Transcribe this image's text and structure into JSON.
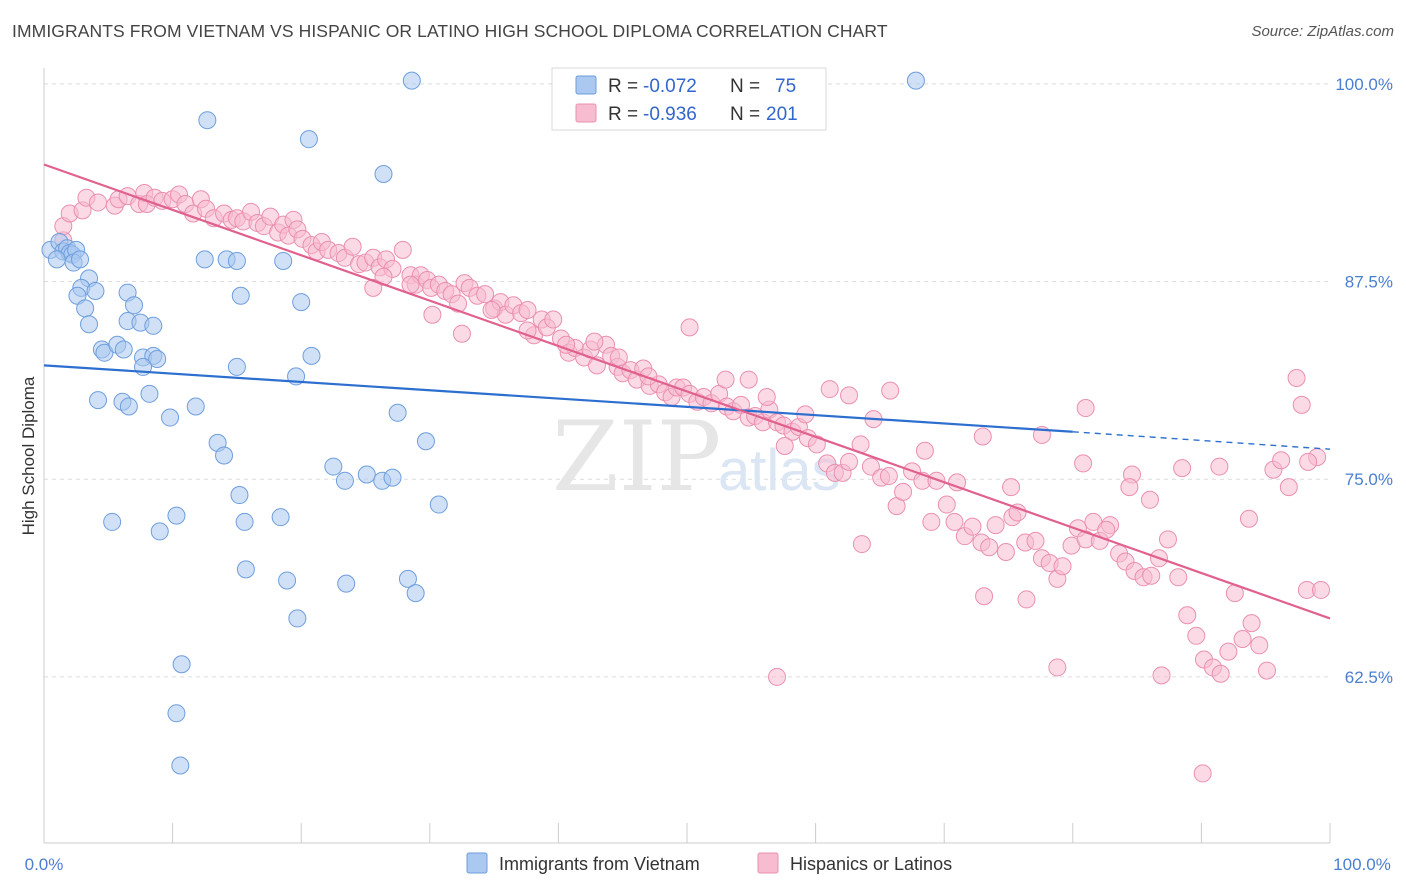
{
  "title": "IMMIGRANTS FROM VIETNAM VS HISPANIC OR LATINO HIGH SCHOOL DIPLOMA CORRELATION CHART",
  "source": "Source: ZipAtlas.com",
  "watermark": {
    "zip": "ZIP",
    "atlas": "atlas"
  },
  "legend": {
    "rows": [
      {
        "r_label": "R = ",
        "r_value": "-0.072",
        "n_label": "N = ",
        "n_value": "75",
        "color": "#8fb8ea"
      },
      {
        "r_label": "R = ",
        "r_value": "-0.936",
        "n_label": "N = ",
        "n_value": "201",
        "color": "#f2a6c0"
      }
    ]
  },
  "colors": {
    "blue_fill": "#aac8f0",
    "blue_stroke": "#6e9edd",
    "blue_line": "#2c6fcf",
    "pink_fill": "#f7bcd0",
    "pink_stroke": "#eb8fb0",
    "pink_line": "#e0608e",
    "grid": "#dcdcdc",
    "tick_text": "#4a7fd0"
  },
  "chart_data": {
    "type": "scatter",
    "title": "IMMIGRANTS FROM VIETNAM VS HISPANIC OR LATINO HIGH SCHOOL DIPLOMA CORRELATION CHART",
    "xlabel": "",
    "ylabel": "High School Diploma",
    "xlim": [
      0,
      100
    ],
    "ylim": [
      52,
      101
    ],
    "x_ticks": [
      "0.0%",
      "100.0%"
    ],
    "y_ticks": [
      {
        "value": 100,
        "label": "100.0%"
      },
      {
        "value": 87.5,
        "label": "87.5%"
      },
      {
        "value": 75,
        "label": "75.0%"
      },
      {
        "value": 62.5,
        "label": "62.5%"
      }
    ],
    "grid": true,
    "legend_position": "top-center",
    "series": [
      {
        "name": "Immigrants from Vietnam",
        "r": -0.072,
        "n": 75,
        "trend": {
          "x0": 0,
          "y0": 82.2,
          "x1": 80,
          "y1": 78.0,
          "dashed_to_x": 100,
          "dashed_to_y": 76.9
        },
        "points": [
          [
            0.5,
            89.5
          ],
          [
            1.2,
            90.0
          ],
          [
            1.5,
            89.4
          ],
          [
            1.8,
            89.6
          ],
          [
            2.0,
            89.3
          ],
          [
            2.2,
            89.2
          ],
          [
            2.5,
            89.5
          ],
          [
            2.3,
            88.7
          ],
          [
            1.0,
            88.9
          ],
          [
            2.8,
            88.9
          ],
          [
            3.5,
            87.7
          ],
          [
            2.9,
            87.1
          ],
          [
            4.0,
            86.9
          ],
          [
            2.6,
            86.6
          ],
          [
            3.2,
            85.8
          ],
          [
            6.5,
            86.8
          ],
          [
            7.0,
            86.0
          ],
          [
            3.5,
            84.8
          ],
          [
            6.5,
            85.0
          ],
          [
            7.5,
            84.9
          ],
          [
            8.5,
            84.7
          ],
          [
            4.5,
            83.2
          ],
          [
            4.7,
            83.0
          ],
          [
            5.7,
            83.5
          ],
          [
            6.2,
            83.2
          ],
          [
            7.7,
            82.7
          ],
          [
            8.5,
            82.8
          ],
          [
            8.8,
            82.6
          ],
          [
            7.7,
            82.1
          ],
          [
            12.5,
            88.9
          ],
          [
            14.2,
            88.9
          ],
          [
            15.0,
            88.8
          ],
          [
            15.3,
            86.6
          ],
          [
            18.6,
            88.8
          ],
          [
            19.6,
            81.5
          ],
          [
            20.0,
            86.2
          ],
          [
            20.8,
            82.8
          ],
          [
            15.0,
            82.1
          ],
          [
            4.2,
            80.0
          ],
          [
            6.1,
            79.9
          ],
          [
            6.6,
            79.6
          ],
          [
            8.2,
            80.4
          ],
          [
            11.8,
            79.6
          ],
          [
            9.8,
            78.9
          ],
          [
            13.5,
            77.3
          ],
          [
            14.0,
            76.5
          ],
          [
            22.5,
            75.8
          ],
          [
            23.4,
            74.9
          ],
          [
            25.1,
            75.3
          ],
          [
            26.3,
            74.9
          ],
          [
            27.1,
            75.1
          ],
          [
            29.7,
            77.4
          ],
          [
            15.2,
            74.0
          ],
          [
            10.3,
            72.7
          ],
          [
            15.6,
            72.3
          ],
          [
            18.4,
            72.6
          ],
          [
            9.0,
            71.7
          ],
          [
            5.3,
            72.3
          ],
          [
            15.7,
            69.3
          ],
          [
            18.9,
            68.6
          ],
          [
            23.5,
            68.4
          ],
          [
            28.3,
            68.7
          ],
          [
            28.9,
            67.8
          ],
          [
            19.7,
            66.2
          ],
          [
            10.7,
            63.3
          ],
          [
            10.3,
            60.2
          ],
          [
            10.6,
            56.9
          ],
          [
            27.5,
            79.2
          ],
          [
            30.7,
            73.4
          ],
          [
            12.7,
            97.7
          ],
          [
            20.6,
            96.5
          ],
          [
            26.4,
            94.3
          ],
          [
            28.6,
            100.2
          ],
          [
            67.8,
            100.2
          ],
          [
            52.3,
            99.9
          ]
        ]
      },
      {
        "name": "Hispanics or Latinos",
        "r": -0.936,
        "n": 201,
        "trend": {
          "x0": 0,
          "y0": 94.9,
          "x1": 100,
          "y1": 66.2
        },
        "points": [
          [
            1.5,
            90.1
          ],
          [
            1.5,
            91.0
          ],
          [
            2.0,
            91.8
          ],
          [
            3.0,
            92.0
          ],
          [
            3.3,
            92.8
          ],
          [
            4.2,
            92.5
          ],
          [
            5.5,
            92.3
          ],
          [
            5.8,
            92.7
          ],
          [
            6.5,
            92.9
          ],
          [
            7.4,
            92.4
          ],
          [
            7.8,
            93.1
          ],
          [
            8.0,
            92.4
          ],
          [
            8.6,
            92.8
          ],
          [
            9.2,
            92.6
          ],
          [
            10.0,
            92.7
          ],
          [
            10.5,
            93.0
          ],
          [
            11.0,
            92.4
          ],
          [
            11.6,
            91.8
          ],
          [
            12.2,
            92.7
          ],
          [
            12.6,
            92.1
          ],
          [
            13.2,
            91.5
          ],
          [
            14.0,
            91.8
          ],
          [
            14.6,
            91.4
          ],
          [
            15.0,
            91.5
          ],
          [
            15.5,
            91.3
          ],
          [
            16.1,
            91.9
          ],
          [
            16.6,
            91.2
          ],
          [
            17.1,
            91.0
          ],
          [
            17.6,
            91.6
          ],
          [
            18.2,
            90.6
          ],
          [
            18.6,
            91.1
          ],
          [
            19.0,
            90.4
          ],
          [
            19.4,
            91.4
          ],
          [
            19.7,
            90.8
          ],
          [
            20.1,
            90.2
          ],
          [
            20.8,
            89.8
          ],
          [
            21.2,
            89.4
          ],
          [
            21.6,
            90.0
          ],
          [
            22.1,
            89.5
          ],
          [
            22.9,
            89.3
          ],
          [
            23.4,
            89.0
          ],
          [
            24.0,
            89.7
          ],
          [
            24.5,
            88.6
          ],
          [
            25.0,
            88.7
          ],
          [
            25.6,
            89.0
          ],
          [
            26.1,
            88.4
          ],
          [
            26.6,
            88.9
          ],
          [
            27.1,
            88.3
          ],
          [
            27.9,
            89.5
          ],
          [
            28.5,
            87.9
          ],
          [
            28.9,
            87.3
          ],
          [
            29.3,
            87.9
          ],
          [
            29.8,
            87.6
          ],
          [
            30.1,
            87.1
          ],
          [
            30.7,
            87.3
          ],
          [
            31.2,
            86.9
          ],
          [
            31.7,
            86.7
          ],
          [
            32.2,
            86.1
          ],
          [
            32.7,
            87.4
          ],
          [
            33.1,
            87.1
          ],
          [
            33.7,
            86.6
          ],
          [
            34.3,
            86.7
          ],
          [
            35.0,
            85.8
          ],
          [
            35.5,
            86.2
          ],
          [
            35.9,
            85.4
          ],
          [
            36.5,
            86.0
          ],
          [
            37.1,
            85.5
          ],
          [
            37.6,
            85.7
          ],
          [
            38.1,
            84.1
          ],
          [
            38.7,
            85.1
          ],
          [
            39.1,
            84.6
          ],
          [
            39.6,
            85.1
          ],
          [
            40.2,
            83.9
          ],
          [
            40.8,
            83.0
          ],
          [
            41.3,
            83.3
          ],
          [
            42.0,
            82.7
          ],
          [
            42.5,
            83.2
          ],
          [
            43.0,
            82.2
          ],
          [
            43.7,
            83.5
          ],
          [
            44.1,
            82.8
          ],
          [
            44.6,
            82.1
          ],
          [
            45.0,
            81.7
          ],
          [
            45.6,
            81.9
          ],
          [
            46.1,
            81.3
          ],
          [
            46.6,
            82.0
          ],
          [
            47.1,
            80.9
          ],
          [
            47.8,
            81.0
          ],
          [
            48.3,
            80.5
          ],
          [
            48.8,
            80.2
          ],
          [
            49.2,
            80.8
          ],
          [
            49.7,
            80.8
          ],
          [
            50.2,
            80.4
          ],
          [
            50.8,
            79.9
          ],
          [
            51.3,
            80.2
          ],
          [
            51.9,
            79.8
          ],
          [
            52.5,
            80.4
          ],
          [
            53.1,
            79.6
          ],
          [
            53.6,
            79.3
          ],
          [
            54.2,
            79.7
          ],
          [
            54.8,
            78.9
          ],
          [
            55.3,
            79.0
          ],
          [
            55.9,
            78.6
          ],
          [
            56.4,
            79.4
          ],
          [
            57.0,
            78.6
          ],
          [
            57.5,
            78.4
          ],
          [
            58.2,
            78.0
          ],
          [
            58.7,
            78.3
          ],
          [
            59.4,
            77.6
          ],
          [
            60.1,
            77.2
          ],
          [
            60.9,
            76.0
          ],
          [
            61.5,
            75.4
          ],
          [
            62.1,
            75.4
          ],
          [
            62.6,
            76.1
          ],
          [
            63.5,
            77.2
          ],
          [
            64.3,
            75.8
          ],
          [
            65.1,
            75.1
          ],
          [
            65.7,
            75.2
          ],
          [
            66.3,
            73.3
          ],
          [
            66.8,
            74.2
          ],
          [
            67.5,
            75.5
          ],
          [
            68.3,
            74.9
          ],
          [
            69.4,
            74.9
          ],
          [
            70.2,
            73.4
          ],
          [
            70.8,
            72.3
          ],
          [
            71.6,
            71.4
          ],
          [
            72.2,
            72.0
          ],
          [
            72.9,
            71.0
          ],
          [
            73.5,
            70.7
          ],
          [
            74.0,
            72.1
          ],
          [
            74.8,
            70.4
          ],
          [
            75.3,
            72.6
          ],
          [
            75.7,
            72.9
          ],
          [
            76.3,
            71.0
          ],
          [
            77.1,
            71.1
          ],
          [
            77.6,
            70.0
          ],
          [
            78.2,
            69.7
          ],
          [
            78.8,
            68.7
          ],
          [
            79.2,
            69.5
          ],
          [
            79.9,
            70.8
          ],
          [
            80.4,
            71.9
          ],
          [
            81.0,
            71.2
          ],
          [
            81.6,
            72.3
          ],
          [
            82.1,
            71.1
          ],
          [
            82.9,
            72.1
          ],
          [
            83.6,
            70.3
          ],
          [
            84.1,
            69.8
          ],
          [
            84.8,
            69.2
          ],
          [
            85.5,
            68.8
          ],
          [
            86.1,
            68.9
          ],
          [
            86.7,
            70.0
          ],
          [
            87.4,
            71.2
          ],
          [
            88.2,
            68.8
          ],
          [
            88.9,
            66.4
          ],
          [
            89.6,
            65.1
          ],
          [
            90.2,
            63.6
          ],
          [
            90.9,
            63.1
          ],
          [
            91.5,
            62.7
          ],
          [
            92.1,
            64.1
          ],
          [
            92.6,
            67.8
          ],
          [
            93.2,
            64.9
          ],
          [
            93.9,
            65.9
          ],
          [
            94.5,
            64.5
          ],
          [
            95.1,
            62.9
          ],
          [
            95.6,
            75.6
          ],
          [
            96.2,
            76.2
          ],
          [
            96.8,
            74.5
          ],
          [
            97.4,
            81.4
          ],
          [
            97.8,
            79.7
          ],
          [
            98.2,
            68.0
          ],
          [
            99.0,
            76.4
          ],
          [
            99.3,
            68.0
          ],
          [
            98.3,
            76.1
          ],
          [
            93.7,
            72.5
          ],
          [
            91.4,
            75.8
          ],
          [
            88.5,
            75.7
          ],
          [
            84.6,
            75.3
          ],
          [
            80.8,
            76.0
          ],
          [
            81.0,
            79.5
          ],
          [
            77.6,
            77.8
          ],
          [
            75.2,
            74.5
          ],
          [
            73.0,
            77.7
          ],
          [
            71.0,
            74.8
          ],
          [
            68.5,
            76.8
          ],
          [
            65.8,
            80.6
          ],
          [
            64.5,
            78.8
          ],
          [
            62.6,
            80.3
          ],
          [
            61.1,
            80.7
          ],
          [
            59.2,
            79.1
          ],
          [
            57.6,
            77.1
          ],
          [
            56.2,
            80.2
          ],
          [
            54.8,
            81.3
          ],
          [
            53.0,
            81.3
          ],
          [
            50.2,
            84.6
          ],
          [
            47.0,
            81.5
          ],
          [
            44.7,
            82.7
          ],
          [
            42.8,
            83.7
          ],
          [
            40.6,
            83.5
          ],
          [
            37.6,
            84.4
          ],
          [
            34.8,
            85.7
          ],
          [
            32.5,
            84.2
          ],
          [
            30.2,
            85.4
          ],
          [
            28.5,
            87.3
          ],
          [
            26.4,
            87.8
          ],
          [
            25.6,
            87.1
          ],
          [
            57.0,
            62.5
          ],
          [
            63.6,
            70.9
          ],
          [
            69.0,
            72.3
          ],
          [
            73.1,
            67.6
          ],
          [
            76.4,
            67.4
          ],
          [
            78.8,
            63.1
          ],
          [
            82.6,
            71.8
          ],
          [
            86.0,
            73.7
          ],
          [
            90.1,
            56.4
          ],
          [
            86.9,
            62.6
          ],
          [
            84.4,
            74.5
          ]
        ]
      }
    ]
  },
  "bottom_legend": [
    {
      "label": "Immigrants from Vietnam"
    },
    {
      "label": "Hispanics or Latinos"
    }
  ]
}
